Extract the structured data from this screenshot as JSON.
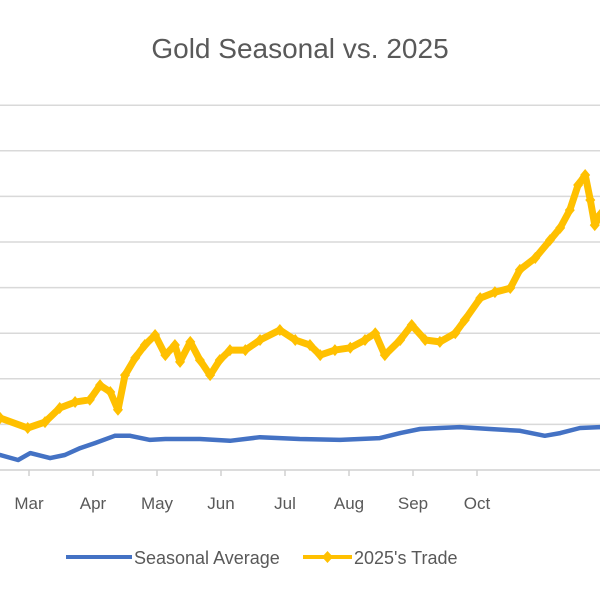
{
  "chart_data": {
    "type": "line",
    "title": "Gold Seasonal vs. 2025",
    "xlabel": "",
    "ylabel": "",
    "x_unit": "month (3 = Mar)",
    "y_unit": "gridline steps above the bottom axis (y-axis tick labels cropped out of view)",
    "xlim": [
      2.55,
      11.92
    ],
    "ylim": [
      0,
      8
    ],
    "grid": true,
    "legend_position": "bottom",
    "categories": [
      "Mar",
      "Apr",
      "May",
      "Jun",
      "Jul",
      "Aug",
      "Sep",
      "Oct"
    ],
    "category_months": [
      3,
      4,
      5,
      6,
      7,
      8,
      9,
      10
    ],
    "series": [
      {
        "name": "Seasonal Average",
        "color": "#4472C4",
        "x": [
          2.55,
          2.83,
          3.02,
          3.33,
          3.56,
          3.8,
          4.03,
          4.34,
          4.58,
          4.89,
          5.13,
          5.67,
          6.14,
          6.61,
          7.23,
          7.86,
          8.48,
          8.8,
          9.11,
          9.42,
          9.73,
          10.2,
          10.67,
          11.06,
          11.3,
          11.61,
          11.92
        ],
        "values": [
          0.33,
          0.22,
          0.37,
          0.26,
          0.33,
          0.48,
          0.59,
          0.75,
          0.75,
          0.66,
          0.68,
          0.68,
          0.64,
          0.72,
          0.68,
          0.66,
          0.7,
          0.81,
          0.9,
          0.92,
          0.94,
          0.9,
          0.86,
          0.75,
          0.81,
          0.92,
          0.94
        ]
      },
      {
        "name": "2025's Trade",
        "color": "#FFC000",
        "x": [
          2.55,
          2.98,
          3.25,
          3.48,
          3.72,
          3.95,
          4.11,
          4.27,
          4.39,
          4.5,
          4.66,
          4.81,
          4.97,
          5.13,
          5.28,
          5.36,
          5.52,
          5.67,
          5.83,
          5.98,
          6.14,
          6.38,
          6.61,
          6.92,
          7.16,
          7.39,
          7.55,
          7.78,
          8.02,
          8.25,
          8.41,
          8.56,
          8.8,
          8.98,
          9.19,
          9.42,
          9.66,
          9.81,
          10.05,
          10.28,
          10.52,
          10.67,
          10.91,
          11.14,
          11.3,
          11.45,
          11.58,
          11.69,
          11.77,
          11.84,
          11.92
        ],
        "values": [
          1.14,
          0.92,
          1.05,
          1.36,
          1.49,
          1.54,
          1.86,
          1.71,
          1.32,
          2.08,
          2.46,
          2.74,
          2.96,
          2.52,
          2.74,
          2.37,
          2.81,
          2.41,
          2.08,
          2.41,
          2.63,
          2.63,
          2.85,
          3.07,
          2.85,
          2.74,
          2.52,
          2.63,
          2.68,
          2.85,
          3.0,
          2.52,
          2.85,
          3.18,
          2.85,
          2.81,
          3.0,
          3.29,
          3.77,
          3.9,
          3.99,
          4.39,
          4.65,
          5.04,
          5.31,
          5.7,
          6.25,
          6.47,
          5.92,
          5.37,
          5.59
        ]
      }
    ]
  }
}
